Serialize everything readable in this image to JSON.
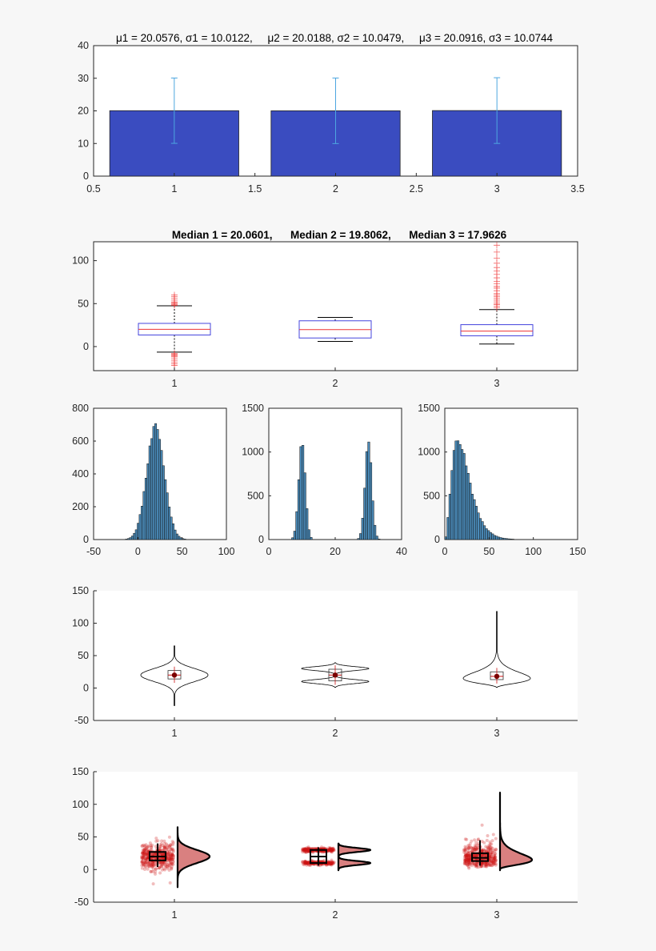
{
  "figure": {
    "background": "#f7f7f7",
    "axes_background": "#ffffff",
    "axis_color": "#262626"
  },
  "chart_data": [
    {
      "type": "bar",
      "title": "μ1 = 20.0576, σ1 = 10.0122,     μ2 = 20.0188, σ2 = 10.0479,     μ3 = 20.0916, σ3 = 10.0744",
      "x": [
        1,
        2,
        3
      ],
      "values": [
        20.0576,
        20.0188,
        20.0916
      ],
      "errors": [
        10.0122,
        10.0479,
        10.0744
      ],
      "xlim": [
        0.5,
        3.5
      ],
      "ylim": [
        0,
        40
      ],
      "xticks": [
        "0.5",
        "1",
        "1.5",
        "2",
        "2.5",
        "3",
        "3.5"
      ],
      "yticks": [
        "0",
        "10",
        "20",
        "30",
        "40"
      ],
      "bar_color": "#3a4cc0",
      "error_color": "#4da6e0"
    },
    {
      "type": "box",
      "title": "Median 1 = 20.0601,      Median 2 = 19.8062,      Median 3 = 17.9626",
      "categories": [
        "1",
        "2",
        "3"
      ],
      "boxes": [
        {
          "median": 20.0601,
          "q1": 13.5,
          "q3": 27,
          "whisker_low": -6.5,
          "whisker_high": 47.5,
          "outliers": [
            -8,
            -9,
            -10,
            -11,
            -12,
            -14,
            -16,
            -18,
            -20,
            -22,
            48,
            49,
            50,
            51,
            52,
            54,
            56,
            58,
            60
          ]
        },
        {
          "median": 19.8062,
          "q1": 10,
          "q3": 30,
          "whisker_low": 6,
          "whisker_high": 34,
          "outliers": []
        },
        {
          "median": 17.9626,
          "q1": 12.5,
          "q3": 25.5,
          "whisker_low": 3,
          "whisker_high": 43,
          "outliers": [
            45,
            47,
            49,
            50,
            52,
            54,
            56,
            58,
            60,
            62,
            65,
            68,
            70,
            73,
            76,
            80,
            84,
            88,
            92,
            97,
            103,
            110,
            118
          ]
        }
      ],
      "ylim": [
        -28,
        122
      ],
      "yticks": [
        "0",
        "50",
        "100"
      ],
      "box_color": "#4444dd",
      "median_color": "#ee3333",
      "outlier_color": "#ee3333"
    },
    {
      "type": "bar",
      "subtype": "histogram",
      "distribution": "normal",
      "mean": 20,
      "sd": 10,
      "peak": 680,
      "xlim": [
        -50,
        100
      ],
      "ylim": [
        0,
        800
      ],
      "xticks": [
        "-50",
        "0",
        "50",
        "100"
      ],
      "yticks": [
        "0",
        "200",
        "400",
        "600",
        "800"
      ],
      "bar_color": "#4a8ab8"
    },
    {
      "type": "bar",
      "subtype": "histogram",
      "distribution": "bimodal",
      "modes": [
        10,
        30
      ],
      "sd": 1,
      "peak": 1110,
      "xlim": [
        0,
        40
      ],
      "ylim": [
        0,
        1500
      ],
      "xticks": [
        "0",
        "20",
        "40"
      ],
      "yticks": [
        "0",
        "500",
        "1000",
        "1500"
      ],
      "bar_color": "#4a8ab8"
    },
    {
      "type": "bar",
      "subtype": "histogram",
      "distribution": "right-skewed",
      "mode": 15,
      "peak": 1140,
      "xlim": [
        0,
        150
      ],
      "ylim": [
        0,
        1500
      ],
      "xticks": [
        "0",
        "50",
        "100",
        "150"
      ],
      "yticks": [
        "0",
        "500",
        "1000",
        "1500"
      ],
      "bar_color": "#4a8ab8"
    },
    {
      "type": "violin",
      "categories": [
        "1",
        "2",
        "3"
      ],
      "violins": [
        {
          "shape": "normal",
          "mean": 20,
          "sd": 10,
          "min": -27,
          "max": 65,
          "median": 20,
          "q1": 14,
          "q3": 27
        },
        {
          "shape": "bimodal",
          "modes": [
            10,
            30
          ],
          "sd": 3,
          "min": 1,
          "max": 39,
          "median": 20,
          "q1": 11,
          "q3": 29
        },
        {
          "shape": "skewed",
          "mode": 15,
          "min": 1,
          "max": 118,
          "median": 18,
          "q1": 13,
          "q3": 25
        }
      ],
      "ylim": [
        -50,
        150
      ],
      "yticks": [
        "-50",
        "0",
        "50",
        "100",
        "150"
      ],
      "line_color": "#000000",
      "mean_color": "#cc1111"
    },
    {
      "type": "scatter",
      "subtype": "raincloud",
      "categories": [
        "1",
        "2",
        "3"
      ],
      "clouds": [
        {
          "shape": "normal",
          "mean": 20,
          "sd": 10,
          "min": -27,
          "max": 65,
          "median": 20,
          "q1": 14,
          "q3": 27,
          "whisker_low": 4,
          "whisker_high": 40
        },
        {
          "shape": "bimodal",
          "modes": [
            10,
            30
          ],
          "sd": 1,
          "min": -1,
          "max": 40,
          "median": 20,
          "q1": 10,
          "q3": 30,
          "whisker_low": 6,
          "whisker_high": 34
        },
        {
          "shape": "skewed",
          "mode": 15,
          "min": -1,
          "max": 118,
          "median": 18,
          "q1": 13,
          "q3": 25,
          "whisker_low": 6,
          "whisker_high": 45
        }
      ],
      "ylim": [
        -50,
        150
      ],
      "yticks": [
        "-50",
        "0",
        "50",
        "100",
        "150"
      ],
      "dot_color": "#cc1111",
      "density_fill": "#d98080"
    }
  ]
}
